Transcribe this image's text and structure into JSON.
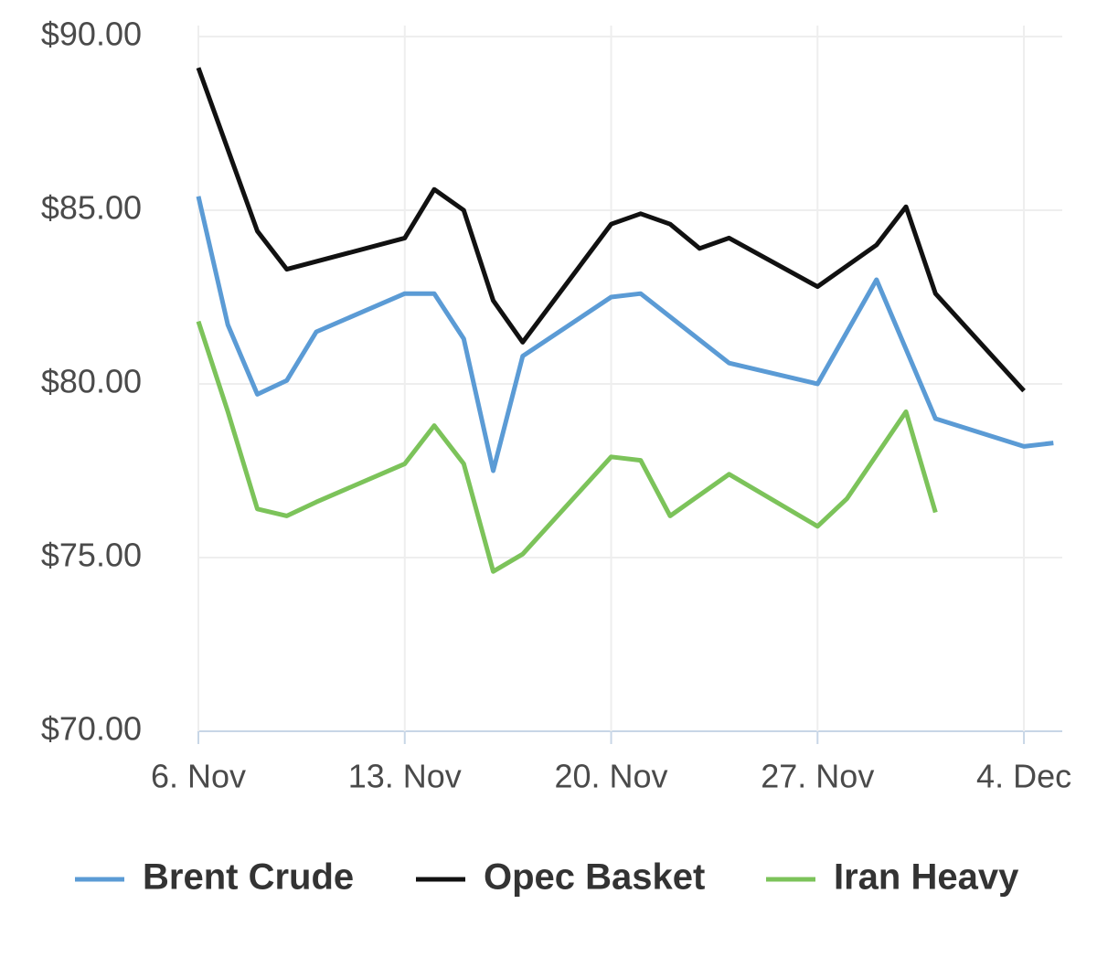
{
  "chart_data": {
    "type": "line",
    "xlim": [
      0,
      29.3
    ],
    "xticks": [
      {
        "value": 0,
        "label": "6. Nov"
      },
      {
        "value": 7,
        "label": "13. Nov"
      },
      {
        "value": 14,
        "label": "20. Nov"
      },
      {
        "value": 21,
        "label": "27. Nov"
      },
      {
        "value": 28,
        "label": "4. Dec"
      }
    ],
    "ylim": [
      70,
      90
    ],
    "yticks": [
      {
        "value": 70,
        "label": "$70.00"
      },
      {
        "value": 75,
        "label": "$75.00"
      },
      {
        "value": 80,
        "label": "$80.00"
      },
      {
        "value": 85,
        "label": "$85.00"
      },
      {
        "value": 90,
        "label": "$90.00"
      }
    ],
    "grid": true,
    "legend": "bottom",
    "series": [
      {
        "name": "Brent Crude",
        "color": "#5b9bd5",
        "x": [
          0,
          1,
          2,
          3,
          4,
          7,
          8,
          9,
          10,
          11,
          14,
          15,
          18,
          21,
          23,
          25,
          28,
          29
        ],
        "values": [
          85.4,
          81.7,
          79.7,
          80.1,
          81.5,
          82.6,
          82.6,
          81.3,
          77.5,
          80.8,
          82.5,
          82.6,
          80.6,
          80.0,
          83.0,
          79.0,
          78.2,
          78.3
        ]
      },
      {
        "name": "Opec Basket",
        "color": "#111111",
        "x": [
          0,
          2,
          3,
          7,
          8,
          9,
          10,
          11,
          14,
          15,
          16,
          17,
          18,
          21,
          23,
          24,
          25,
          28
        ],
        "values": [
          89.1,
          84.4,
          83.3,
          84.2,
          85.6,
          85.0,
          82.4,
          81.2,
          84.6,
          84.9,
          84.6,
          83.9,
          84.2,
          82.8,
          84.0,
          85.1,
          82.6,
          79.8
        ]
      },
      {
        "name": "Iran Heavy",
        "color": "#7cc35a",
        "x": [
          0,
          1,
          2,
          3,
          4,
          7,
          8,
          9,
          10,
          11,
          14,
          15,
          16,
          18,
          21,
          22,
          24,
          25
        ],
        "values": [
          81.8,
          79.2,
          76.4,
          76.2,
          76.6,
          77.7,
          78.8,
          77.7,
          74.6,
          75.1,
          77.9,
          77.8,
          76.2,
          77.4,
          75.9,
          76.7,
          79.2,
          76.3
        ]
      }
    ]
  }
}
